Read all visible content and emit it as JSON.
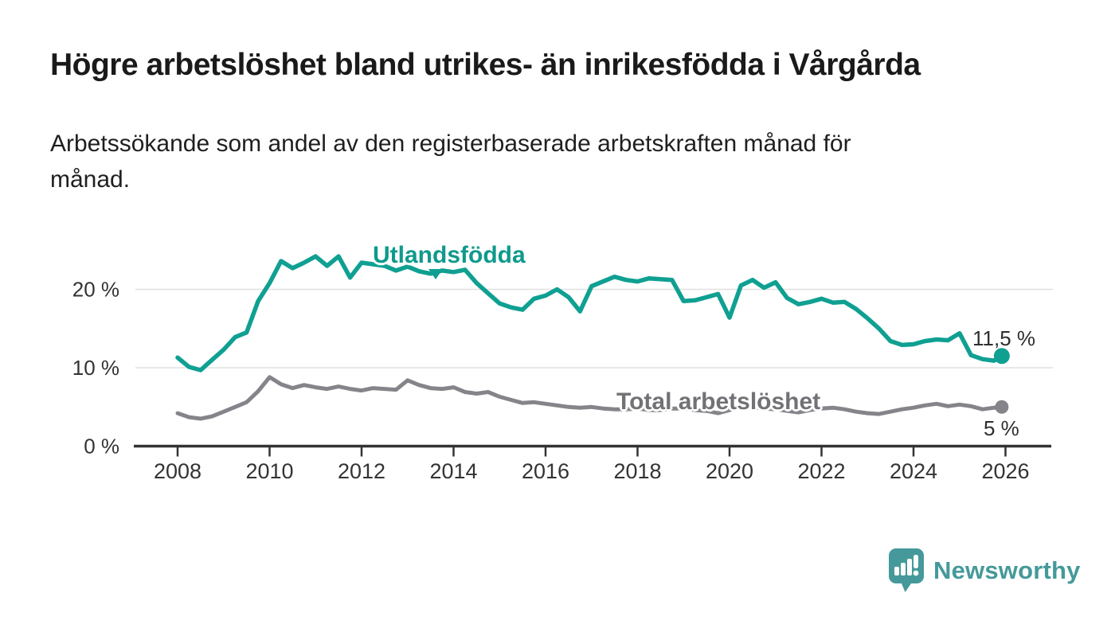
{
  "chart_data": {
    "type": "line",
    "title": "Högre arbetslöshet bland utrikes- än inrikesfödda i Vårgårda",
    "subtitle": "Arbetssökande som andel av den registerbaserade arbetskraften månad för\nmånad.",
    "x_unit": "year",
    "x_start": 2008,
    "x_step": 0.25,
    "xlim": [
      2007.1,
      2027
    ],
    "ylim": [
      0,
      26.5
    ],
    "grid": "horizontal",
    "legend_position": "inline-labels",
    "xticks": [
      2008,
      2010,
      2012,
      2014,
      2016,
      2018,
      2020,
      2022,
      2024,
      2026
    ],
    "yticks": [
      {
        "value": 0,
        "label": "0 %"
      },
      {
        "value": 10,
        "label": "10 %"
      },
      {
        "value": 20,
        "label": "20 %"
      }
    ],
    "series": [
      {
        "name": "Utlandsfödda",
        "color": "#0fa092",
        "label_color": "#0e9a8c",
        "end_label": "11,5 %",
        "last_point": {
          "x": 2025.92,
          "value": 11.5
        },
        "values": [
          11.3,
          10.1,
          9.7,
          11.0,
          12.3,
          13.9,
          14.5,
          18.5,
          20.8,
          23.6,
          22.7,
          23.4,
          24.2,
          23.0,
          24.2,
          21.5,
          23.4,
          23.2,
          23.0,
          22.4,
          22.9,
          22.3,
          22.0,
          22.4,
          22.2,
          22.5,
          20.8,
          19.5,
          18.2,
          17.7,
          17.4,
          18.8,
          19.2,
          20.0,
          19.0,
          17.2,
          20.4,
          21.0,
          21.6,
          21.2,
          21.0,
          21.4,
          21.3,
          21.2,
          18.5,
          18.6,
          19.0,
          19.4,
          16.4,
          20.5,
          21.2,
          20.2,
          20.9,
          18.9,
          18.1,
          18.4,
          18.8,
          18.3,
          18.4,
          17.5,
          16.3,
          15.0,
          13.4,
          12.9,
          13.0,
          13.4,
          13.6,
          13.5,
          14.4,
          11.6,
          11.1,
          10.9
        ]
      },
      {
        "name": "Total arbetslöshet",
        "color": "#84848a",
        "label_color": "#717176",
        "end_label": "5 %",
        "last_point": {
          "x": 2025.92,
          "value": 5.0
        },
        "values": [
          4.2,
          3.7,
          3.5,
          3.8,
          4.4,
          5.0,
          5.6,
          7.0,
          8.8,
          7.9,
          7.4,
          7.8,
          7.5,
          7.3,
          7.6,
          7.3,
          7.1,
          7.4,
          7.3,
          7.2,
          8.4,
          7.8,
          7.4,
          7.3,
          7.5,
          6.9,
          6.7,
          6.9,
          6.3,
          5.9,
          5.5,
          5.6,
          5.4,
          5.2,
          5.0,
          4.9,
          5.0,
          4.8,
          4.7,
          4.7,
          4.8,
          4.6,
          4.6,
          4.8,
          4.8,
          4.6,
          4.5,
          4.2,
          4.6,
          5.1,
          5.0,
          4.8,
          4.7,
          4.5,
          4.3,
          4.6,
          4.8,
          4.9,
          4.7,
          4.4,
          4.2,
          4.1,
          4.4,
          4.7,
          4.9,
          5.2,
          5.4,
          5.1,
          5.3,
          5.1,
          4.7,
          4.9
        ]
      }
    ]
  },
  "colors": {
    "background": "#ffffff",
    "axis": "#333333",
    "grid": "#e0e0e0",
    "tick_label": "#333333",
    "end_label": "#2e2e2e",
    "title": "#1a1a1a"
  },
  "branding": {
    "name": "Newsworthy",
    "color": "#45999a",
    "icon": "bar-chart-speech-bubble-icon"
  }
}
